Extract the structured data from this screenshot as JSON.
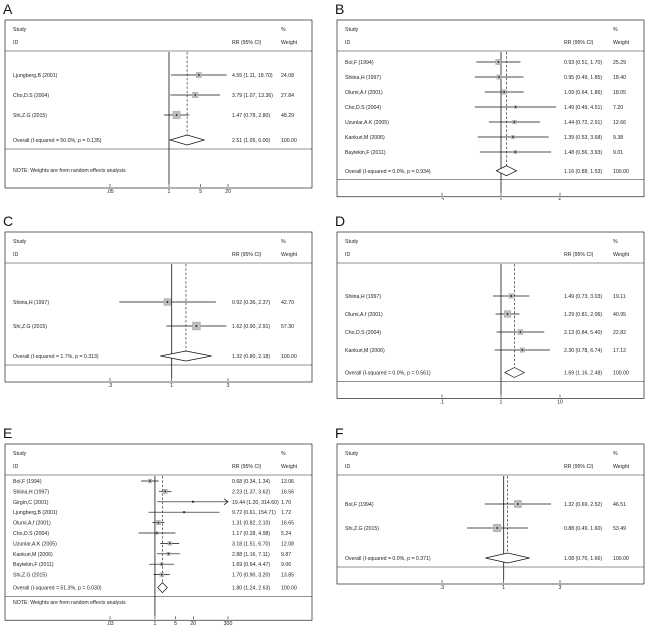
{
  "chart_data": [
    {
      "type": "forest",
      "panel": "A",
      "headers": {
        "study": "Study",
        "id": "ID",
        "effect": "RR (95% CI)",
        "weight": "%",
        "weight_sub": "Weight"
      },
      "studies": [
        {
          "id": "Ljungberg,B (2001)",
          "rr": 4.55,
          "lo": 1.11,
          "hi": 18.7,
          "ci_text": "4.55 (1.11, 18.70)",
          "weight": "24.08",
          "w": 24.08
        },
        {
          "id": "Cho,D.S (2004)",
          "rr": 3.79,
          "lo": 1.07,
          "hi": 13.36,
          "ci_text": "3.79 (1.07, 13.36)",
          "weight": "27.84",
          "w": 27.84
        },
        {
          "id": "Shi,Z.G (2015)",
          "rr": 1.47,
          "lo": 0.78,
          "hi": 2.8,
          "ci_text": "1.47 (0.78, 2.80)",
          "weight": "48.29",
          "w": 48.29
        }
      ],
      "overall": {
        "label": "Overall  (I-squared = 50.0%, p = 0.135)",
        "rr": 2.51,
        "lo": 1.05,
        "hi": 6.0,
        "ci_text": "2.51 (1.05, 6.00)",
        "weight": "100.00"
      },
      "note": "NOTE: Weights are from random effects analysis",
      "ticks": [
        {
          "v": 0.05,
          "t": ".05"
        },
        {
          "v": 1,
          "t": "1"
        },
        {
          "v": 5,
          "t": "5"
        },
        {
          "v": 20,
          "t": "20"
        }
      ],
      "xlim": [
        0.05,
        20
      ]
    },
    {
      "type": "forest",
      "panel": "B",
      "headers": {
        "study": "Study",
        "id": "ID",
        "effect": "RR (95% CI)",
        "weight": "%",
        "weight_sub": "Weight"
      },
      "studies": [
        {
          "id": "Bol,F (1994)",
          "rr": 0.93,
          "lo": 0.51,
          "hi": 1.7,
          "ci_text": "0.93 (0.51, 1.70)",
          "weight": "25.29",
          "w": 25.29
        },
        {
          "id": "Shiina,H (1997)",
          "rr": 0.95,
          "lo": 0.49,
          "hi": 1.85,
          "ci_text": "0.95 (0.49, 1.85)",
          "weight": "18.40",
          "w": 18.4
        },
        {
          "id": "Olumi,A.f (2001)",
          "rr": 1.09,
          "lo": 0.64,
          "hi": 1.86,
          "ci_text": "1.09 (0.64, 1.86)",
          "weight": "18.05",
          "w": 18.05
        },
        {
          "id": "Cho,D.S (2004)",
          "rr": 1.49,
          "lo": 0.49,
          "hi": 4.51,
          "ci_text": "1.49 (0.49, 4.51)",
          "weight": "7.20",
          "w": 7.2
        },
        {
          "id": "Uzunlar,A.K (2005)",
          "rr": 1.44,
          "lo": 0.72,
          "hi": 2.91,
          "ci_text": "1.44 (0.72, 2.91)",
          "weight": "12.66",
          "w": 12.66
        },
        {
          "id": "Kankuri,M (2006)",
          "rr": 1.39,
          "lo": 0.53,
          "hi": 3.68,
          "ci_text": "1.39 (0.53, 3.68)",
          "weight": "9.38",
          "w": 9.38
        },
        {
          "id": "Baytekin,F (2011)",
          "rr": 1.48,
          "lo": 0.56,
          "hi": 3.93,
          "ci_text": "1.48 (0.56, 3.93)",
          "weight": "9.01",
          "w": 9.01
        }
      ],
      "overall": {
        "label": "Overall  (I-squared = 0.0%, p = 0.934)",
        "rr": 1.16,
        "lo": 0.88,
        "hi": 1.53,
        "ci_text": "1.16 (0.88, 1.53)",
        "weight": "100.00"
      },
      "note": "",
      "ticks": [
        {
          "v": 0.2,
          "t": ".2"
        },
        {
          "v": 1,
          "t": "1"
        },
        {
          "v": 5,
          "t": "5"
        }
      ],
      "xlim": [
        0.2,
        5
      ]
    },
    {
      "type": "forest",
      "panel": "C",
      "headers": {
        "study": "Study",
        "id": "ID",
        "effect": "RR (95% CI)",
        "weight": "%",
        "weight_sub": "Weight"
      },
      "studies": [
        {
          "id": "Shiina,H (1997)",
          "rr": 0.92,
          "lo": 0.36,
          "hi": 2.37,
          "ci_text": "0.92 (0.36, 2.37)",
          "weight": "42.70",
          "w": 42.7
        },
        {
          "id": "Shi,Z.G (2015)",
          "rr": 1.62,
          "lo": 0.9,
          "hi": 2.91,
          "ci_text": "1.62 (0.90, 2.91)",
          "weight": "57.30",
          "w": 57.3
        }
      ],
      "overall": {
        "label": "Overall  (I-squared = 1.7%, p = 0.313)",
        "rr": 1.32,
        "lo": 0.8,
        "hi": 2.18,
        "ci_text": "1.32 (0.80, 2.18)",
        "weight": "100.00"
      },
      "note": "",
      "ticks": [
        {
          "v": 0.3,
          "t": ".3"
        },
        {
          "v": 1,
          "t": "1"
        },
        {
          "v": 3,
          "t": "3"
        }
      ],
      "xlim": [
        0.3,
        3
      ]
    },
    {
      "type": "forest",
      "panel": "D",
      "headers": {
        "study": "Study",
        "id": "ID",
        "effect": "RR (95% CI)",
        "weight": "%",
        "weight_sub": "Weight"
      },
      "studies": [
        {
          "id": "Shiina,H (1997)",
          "rr": 1.49,
          "lo": 0.73,
          "hi": 3.03,
          "ci_text": "1.49 (0.73, 3.03)",
          "weight": "19.11",
          "w": 19.11
        },
        {
          "id": "Olumi,A.f (2001)",
          "rr": 1.29,
          "lo": 0.81,
          "hi": 2.06,
          "ci_text": "1.29 (0.81, 2.06)",
          "weight": "40.95",
          "w": 40.95
        },
        {
          "id": "Cho,D.S (2004)",
          "rr": 2.13,
          "lo": 0.84,
          "hi": 5.4,
          "ci_text": "2.13 (0.84, 5.40)",
          "weight": "22.82",
          "w": 22.82
        },
        {
          "id": "Kankuri,M (2006)",
          "rr": 2.3,
          "lo": 0.78,
          "hi": 6.74,
          "ci_text": "2.30 (0.78, 6.74)",
          "weight": "17.12",
          "w": 17.12
        }
      ],
      "overall": {
        "label": "Overall  (I-squared = 0.0%, p = 0.561)",
        "rr": 1.69,
        "lo": 1.16,
        "hi": 2.48,
        "ci_text": "1.69 (1.16, 2.48)",
        "weight": "100.00"
      },
      "note": "",
      "ticks": [
        {
          "v": 0.1,
          "t": ".1"
        },
        {
          "v": 1,
          "t": "1"
        },
        {
          "v": 10,
          "t": "10"
        }
      ],
      "xlim": [
        0.1,
        10
      ]
    },
    {
      "type": "forest",
      "panel": "E",
      "headers": {
        "study": "Study",
        "id": "ID",
        "effect": "RR (95% CI)",
        "weight": "%",
        "weight_sub": "Weight"
      },
      "studies": [
        {
          "id": "Bol,F (1994)",
          "rr": 0.68,
          "lo": 0.34,
          "hi": 1.34,
          "ci_text": "0.68 (0.34, 1.34)",
          "weight": "13.06",
          "w": 13.06
        },
        {
          "id": "Shiina,H (1997)",
          "rr": 2.23,
          "lo": 1.37,
          "hi": 3.62,
          "ci_text": "2.23 (1.37, 3.62)",
          "weight": "16.56",
          "w": 16.56
        },
        {
          "id": "Girgin,C (2001)",
          "rr": 19.44,
          "lo": 1.2,
          "hi": 314.6,
          "ci_text": "19.44 (1.20, 314.60)",
          "weight": "1.70",
          "w": 1.7
        },
        {
          "id": "Ljungberg,B (2001)",
          "rr": 9.72,
          "lo": 0.61,
          "hi": 154.71,
          "ci_text": "9.72 (0.61, 154.71)",
          "weight": "1.72",
          "w": 1.72
        },
        {
          "id": "Olumi,A.f (2001)",
          "rr": 1.31,
          "lo": 0.82,
          "hi": 2.1,
          "ci_text": "1.31 (0.82, 2.10)",
          "weight": "16.65",
          "w": 16.65
        },
        {
          "id": "Cho,D.S (2004)",
          "rr": 1.17,
          "lo": 0.28,
          "hi": 4.98,
          "ci_text": "1.17 (0.28, 4.98)",
          "weight": "5.24",
          "w": 5.24
        },
        {
          "id": "Uzunlar,A.K (2005)",
          "rr": 3.18,
          "lo": 1.51,
          "hi": 6.7,
          "ci_text": "3.18 (1.51, 6.70)",
          "weight": "12.08",
          "w": 12.08
        },
        {
          "id": "Kankuri,M (2006)",
          "rr": 2.88,
          "lo": 1.16,
          "hi": 7.11,
          "ci_text": "2.88 (1.16, 7.11)",
          "weight": "9.87",
          "w": 9.87
        },
        {
          "id": "Baytekin,F (2011)",
          "rr": 1.69,
          "lo": 0.64,
          "hi": 4.47,
          "ci_text": "1.69 (0.64, 4.47)",
          "weight": "9.06",
          "w": 9.06
        },
        {
          "id": "Shi,Z.G (2015)",
          "rr": 1.7,
          "lo": 0.9,
          "hi": 3.2,
          "ci_text": "1.70 (0.90, 3.20)",
          "weight": "13.85",
          "w": 13.85
        }
      ],
      "overall": {
        "label": "Overall  (I-squared = 51.3%, p = 0.030)",
        "rr": 1.8,
        "lo": 1.24,
        "hi": 2.63,
        "ci_text": "1.80 (1.24, 2.63)",
        "weight": "100.00"
      },
      "note": "NOTE: Weights are from random effects analysis",
      "ticks": [
        {
          "v": 0.03,
          "t": ".03"
        },
        {
          "v": 1,
          "t": "1"
        },
        {
          "v": 5,
          "t": "5"
        },
        {
          "v": 20,
          "t": "20"
        },
        {
          "v": 300,
          "t": "300"
        }
      ],
      "xlim": [
        0.03,
        300
      ]
    },
    {
      "type": "forest",
      "panel": "F",
      "headers": {
        "study": "Study",
        "id": "ID",
        "effect": "RR (95% CI)",
        "weight": "%",
        "weight_sub": "Weight"
      },
      "studies": [
        {
          "id": "Bol,F (1994)",
          "rr": 1.32,
          "lo": 0.69,
          "hi": 2.52,
          "ci_text": "1.32 (0.69, 2.52)",
          "weight": "46.51",
          "w": 46.51
        },
        {
          "id": "Shi,Z.G (2015)",
          "rr": 0.88,
          "lo": 0.49,
          "hi": 1.6,
          "ci_text": "0.88 (0.49, 1.60)",
          "weight": "53.49",
          "w": 53.49
        }
      ],
      "overall": {
        "label": "Overall  (I-squared = 0.0%, p = 0.371)",
        "rr": 1.08,
        "lo": 0.7,
        "hi": 1.66,
        "ci_text": "1.08 (0.70, 1.66)",
        "weight": "100.00"
      },
      "note": "",
      "ticks": [
        {
          "v": 0.3,
          "t": ".3"
        },
        {
          "v": 1,
          "t": "1"
        },
        {
          "v": 3,
          "t": "3"
        }
      ],
      "xlim": [
        0.3,
        3
      ]
    }
  ]
}
